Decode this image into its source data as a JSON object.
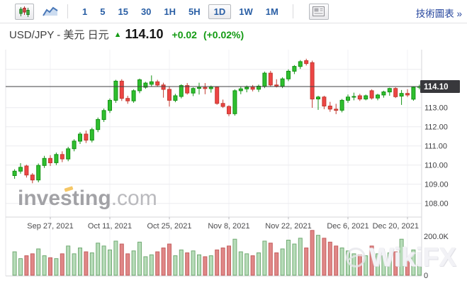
{
  "toolbar": {
    "chart_types": [
      {
        "name": "candlestick-chart",
        "selected": true
      },
      {
        "name": "line-chart",
        "selected": false
      }
    ],
    "intervals": [
      {
        "label": "1",
        "selected": false
      },
      {
        "label": "5",
        "selected": false
      },
      {
        "label": "15",
        "selected": false
      },
      {
        "label": "30",
        "selected": false
      },
      {
        "label": "1H",
        "selected": false
      },
      {
        "label": "5H",
        "selected": false
      },
      {
        "label": "1D",
        "selected": true
      },
      {
        "label": "1W",
        "selected": false
      },
      {
        "label": "1M",
        "selected": false
      }
    ],
    "right_link": "技術圖表 »"
  },
  "title": {
    "instrument": "USD/JPY - 美元 日元",
    "arrow": "▲",
    "price": "114.10",
    "change": "+0.02",
    "change_pct": "(+0.02%)"
  },
  "watermarks": {
    "investing_main": "investing",
    "investing_suffix": ".com",
    "wikifx": "WikiFX"
  },
  "colors": {
    "up_fill": "#2fbf2f",
    "up_stroke": "#149314",
    "down_fill": "#ee4545",
    "down_stroke": "#c23a30",
    "vol_up_fill": "#b7dcb9",
    "vol_up_stroke": "#72ab74",
    "vol_down_fill": "#e08787",
    "vol_down_stroke": "#c45f5f",
    "grid_h": "#ececef",
    "grid_v": "#f1f1f4",
    "axis": "#d6d6da",
    "price_line": "#3f3f42",
    "badge_bg": "#38383c",
    "badge_text": "#ffffff",
    "label_text": "#3f3f41",
    "date_text": "#4c4c4e",
    "accent_green": "#149b14",
    "toolbar_blue": "#2a5fa5",
    "link_blue": "#27479e"
  },
  "chart_data": {
    "type": "candlestick",
    "pair": "USD/JPY",
    "interval": "1D",
    "last_price": 114.1,
    "price_axis_labels": [
      "113.00",
      "112.00",
      "111.00",
      "110.00",
      "109.00",
      "108.00"
    ],
    "price_axis_values": [
      113,
      112,
      111,
      110,
      109,
      108
    ],
    "unlabeled_gridline_values": [
      115
    ],
    "price_axis_range_approx": [
      107.3,
      116.0
    ],
    "badge_label": "114.10",
    "volume_axis_labels": [
      "200.0K",
      "0"
    ],
    "volume_axis_values_k": [
      200,
      0
    ],
    "x_labels": [
      "Sep 27, 2021",
      "Oct 11, 2021",
      "Oct 25, 2021",
      "Nov 8, 2021",
      "Nov 22, 2021",
      "Dec 6, 2021",
      "Dec 20, 2021"
    ],
    "x_label_indices": [
      6,
      16,
      26,
      36,
      46,
      56,
      66
    ],
    "candles_ohlc": [
      [
        109.45,
        109.78,
        109.28,
        109.68
      ],
      [
        109.68,
        110.1,
        109.55,
        109.88
      ],
      [
        109.95,
        110.02,
        109.35,
        109.48
      ],
      [
        109.48,
        109.58,
        109.05,
        109.22
      ],
      [
        109.22,
        110.08,
        109.1,
        109.98
      ],
      [
        109.98,
        110.48,
        109.85,
        110.35
      ],
      [
        110.35,
        110.52,
        109.95,
        110.12
      ],
      [
        110.12,
        110.65,
        110.0,
        110.55
      ],
      [
        110.55,
        110.72,
        110.15,
        110.32
      ],
      [
        110.32,
        110.95,
        110.2,
        110.85
      ],
      [
        110.85,
        111.35,
        110.72,
        111.25
      ],
      [
        111.25,
        111.72,
        111.1,
        111.62
      ],
      [
        111.62,
        111.8,
        111.15,
        111.3
      ],
      [
        111.3,
        111.95,
        111.18,
        111.85
      ],
      [
        111.85,
        112.48,
        111.72,
        112.38
      ],
      [
        112.38,
        112.95,
        112.25,
        112.85
      ],
      [
        112.85,
        113.48,
        112.72,
        113.38
      ],
      [
        113.38,
        114.45,
        113.25,
        114.38
      ],
      [
        114.38,
        114.48,
        113.35,
        113.48
      ],
      [
        113.48,
        113.62,
        113.2,
        113.35
      ],
      [
        113.35,
        113.95,
        113.25,
        113.88
      ],
      [
        113.88,
        114.52,
        113.75,
        114.45
      ],
      [
        114.06,
        114.35,
        113.98,
        114.28
      ],
      [
        114.22,
        114.68,
        114.1,
        114.35
      ],
      [
        114.35,
        114.45,
        114.08,
        114.18
      ],
      [
        114.18,
        114.3,
        113.52,
        113.95
      ],
      [
        113.95,
        114.08,
        113.05,
        113.38
      ],
      [
        113.38,
        113.72,
        113.28,
        113.62
      ],
      [
        113.58,
        114.22,
        113.48,
        114.15
      ],
      [
        114.15,
        114.28,
        113.68,
        113.76
      ],
      [
        113.76,
        114.06,
        113.6,
        114.0
      ],
      [
        114.0,
        114.3,
        113.68,
        114.05
      ],
      [
        114.05,
        114.28,
        113.7,
        113.99
      ],
      [
        113.99,
        114.15,
        113.78,
        114.06
      ],
      [
        114.06,
        114.12,
        113.15,
        113.22
      ],
      [
        113.22,
        113.42,
        112.98,
        113.06
      ],
      [
        113.06,
        113.12,
        112.55,
        112.68
      ],
      [
        112.68,
        113.95,
        112.58,
        113.88
      ],
      [
        113.88,
        114.08,
        113.7,
        113.98
      ],
      [
        113.98,
        114.15,
        113.8,
        114.06
      ],
      [
        114.06,
        114.18,
        113.85,
        113.96
      ],
      [
        113.96,
        114.2,
        113.82,
        114.12
      ],
      [
        114.12,
        114.88,
        114.02,
        114.8
      ],
      [
        114.8,
        114.92,
        114.08,
        114.18
      ],
      [
        114.18,
        114.48,
        114.05,
        114.12
      ],
      [
        114.12,
        114.58,
        114.02,
        114.5
      ],
      [
        114.5,
        115.0,
        114.38,
        114.9
      ],
      [
        114.9,
        115.22,
        114.75,
        115.15
      ],
      [
        115.15,
        115.48,
        115.02,
        115.4
      ],
      [
        115.45,
        115.55,
        115.2,
        115.3
      ],
      [
        115.35,
        115.45,
        112.99,
        113.45
      ],
      [
        113.45,
        113.62,
        112.88,
        113.55
      ],
      [
        113.55,
        113.62,
        112.92,
        113.08
      ],
      [
        113.08,
        113.3,
        112.78,
        112.92
      ],
      [
        112.92,
        113.2,
        112.66,
        112.86
      ],
      [
        112.86,
        113.45,
        112.75,
        113.38
      ],
      [
        113.38,
        113.68,
        113.25,
        113.55
      ],
      [
        113.55,
        113.78,
        113.38,
        113.58
      ],
      [
        113.62,
        113.72,
        113.35,
        113.45
      ],
      [
        113.45,
        113.68,
        113.38,
        113.62
      ],
      [
        113.88,
        113.95,
        113.42,
        113.5
      ],
      [
        113.5,
        113.72,
        113.38,
        113.66
      ],
      [
        113.66,
        113.88,
        113.52,
        113.82
      ],
      [
        113.82,
        114.04,
        113.62,
        114.0
      ],
      [
        114.0,
        114.06,
        113.5,
        113.57
      ],
      [
        113.6,
        113.92,
        113.14,
        113.74
      ],
      [
        113.74,
        113.96,
        113.56,
        113.66
      ],
      [
        113.44,
        114.1,
        113.36,
        114.06
      ],
      [
        114.06,
        114.2,
        113.95,
        114.1
      ]
    ],
    "volumes_k": [
      120,
      85,
      100,
      110,
      135,
      100,
      90,
      85,
      110,
      150,
      110,
      140,
      120,
      115,
      165,
      150,
      130,
      175,
      160,
      110,
      125,
      170,
      95,
      105,
      120,
      140,
      160,
      100,
      130,
      115,
      125,
      105,
      95,
      100,
      130,
      140,
      150,
      185,
      120,
      110,
      100,
      115,
      175,
      165,
      115,
      135,
      180,
      160,
      190,
      140,
      230,
      205,
      190,
      170,
      150,
      140,
      125,
      110,
      105,
      100,
      150,
      110,
      100,
      115,
      120,
      185,
      90,
      130,
      55
    ]
  }
}
